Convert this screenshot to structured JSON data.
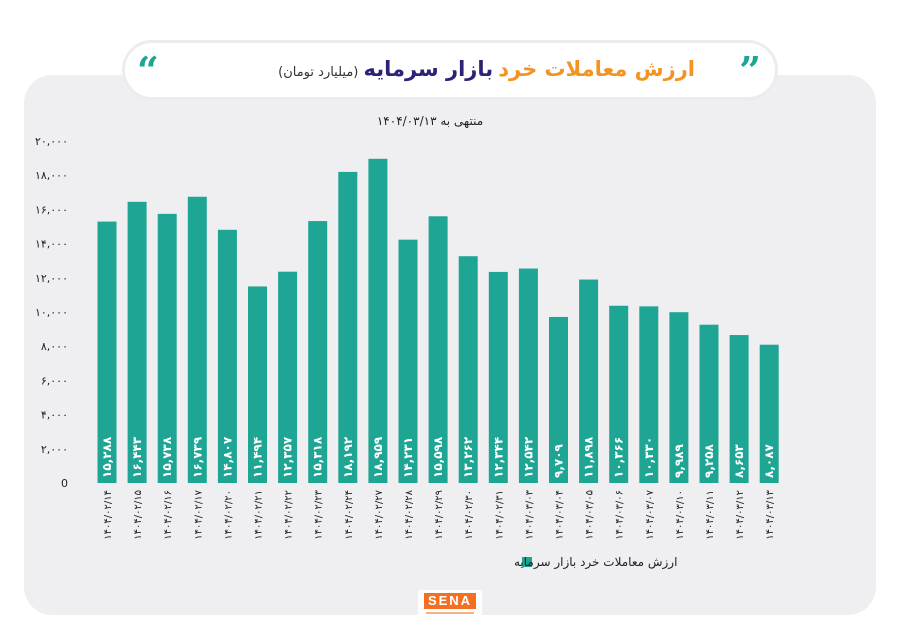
{
  "header": {
    "title_part1": "ارزش معاملات خرد",
    "title_part2": "بازار سرمایه",
    "unit": "(میلیارد تومان)",
    "quote_open": "“",
    "quote_close": "”"
  },
  "logo": {
    "text": "SENA"
  },
  "colors": {
    "bar": "#1fa594",
    "title_orange": "#f39321",
    "title_blue": "#2a2378",
    "panel": "#efeff1"
  },
  "chart_data": {
    "type": "bar",
    "subtitle": "منتهی به ۱۴۰۴/۰۳/۱۳",
    "ylim": [
      0,
      20000
    ],
    "y_ticks": [
      0,
      2000,
      4000,
      6000,
      8000,
      10000,
      12000,
      14000,
      16000,
      18000,
      20000
    ],
    "y_tick_labels": [
      "0",
      "۲,۰۰۰",
      "۴,۰۰۰",
      "۶,۰۰۰",
      "۸,۰۰۰",
      "۱۰,۰۰۰",
      "۱۲,۰۰۰",
      "۱۴,۰۰۰",
      "۱۶,۰۰۰",
      "۱۸,۰۰۰",
      "۲۰,۰۰۰"
    ],
    "grid": false,
    "legend_position": "bottom",
    "categories": [
      "۱۴۰۴/۰۲/۱۴",
      "۱۴۰۴/۰۲/۱۵",
      "۱۴۰۴/۰۲/۱۶",
      "۱۴۰۴/۰۲/۱۷",
      "۱۴۰۴/۰۲/۲۰",
      "۱۴۰۴/۰۲/۲۱",
      "۱۴۰۴/۰۲/۲۲",
      "۱۴۰۴/۰۲/۲۳",
      "۱۴۰۴/۰۲/۲۴",
      "۱۴۰۴/۰۲/۲۷",
      "۱۴۰۴/۰۲/۲۸",
      "۱۴۰۴/۰۲/۲۹",
      "۱۴۰۴/۰۲/۳۰",
      "۱۴۰۴/۰۲/۳۱",
      "۱۴۰۴/۰۳/۰۳",
      "۱۴۰۴/۰۳/۰۴",
      "۱۴۰۴/۰۳/۰۵",
      "۱۴۰۴/۰۳/۰۶",
      "۱۴۰۴/۰۳/۰۷",
      "۱۴۰۴/۰۳/۱۰",
      "۱۴۰۴/۰۳/۱۱",
      "۱۴۰۴/۰۳/۱۲",
      "۱۴۰۴/۰۳/۱۳"
    ],
    "series": [
      {
        "name": "ارزش معاملات خرد بازار سرمایه",
        "color": "#1fa594",
        "values": [
          15288,
          16443,
          15738,
          16739,
          14807,
          11494,
          12357,
          15318,
          18192,
          18959,
          14231,
          15598,
          13262,
          12344,
          12542,
          9709,
          11898,
          10366,
          10330,
          9989,
          9258,
          8653,
          8087
        ],
        "labels": [
          "۱۵,۲۸۸",
          "۱۶,۴۴۳",
          "۱۵,۷۳۸",
          "۱۶,۷۳۹",
          "۱۴,۸۰۷",
          "۱۱,۴۹۴",
          "۱۲,۳۵۷",
          "۱۵,۳۱۸",
          "۱۸,۱۹۲",
          "۱۸,۹۵۹",
          "۱۴,۲۳۱",
          "۱۵,۵۹۸",
          "۱۳,۲۶۲",
          "۱۲,۳۴۴",
          "۱۲,۵۴۲",
          "۹,۷۰۹",
          "۱۱,۸۹۸",
          "۱۰,۳۶۶",
          "۱۰,۳۳۰",
          "۹,۹۸۹",
          "۹,۲۵۸",
          "۸,۶۵۳",
          "۸,۰۸۷"
        ]
      }
    ]
  }
}
